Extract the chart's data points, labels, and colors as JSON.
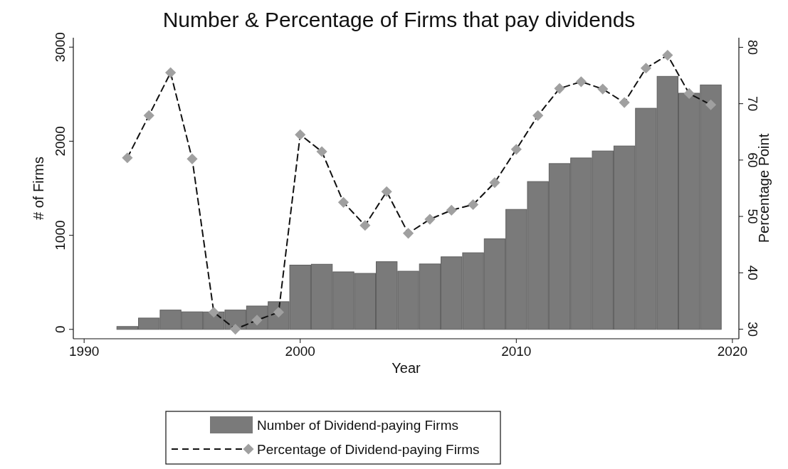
{
  "chart_data": {
    "type": "bar",
    "title": "Number & Percentage of Firms that pay dividends",
    "xlabel": "Year",
    "ylabel": "# of Firms",
    "y2label": "Percentage Point",
    "x": [
      1992,
      1993,
      1994,
      1995,
      1996,
      1997,
      1998,
      1999,
      2000,
      2001,
      2002,
      2003,
      2004,
      2005,
      2006,
      2007,
      2008,
      2009,
      2010,
      2011,
      2012,
      2013,
      2014,
      2015,
      2016,
      2017,
      2018,
      2019
    ],
    "series": [
      {
        "name": "Number of Dividend-paying Firms",
        "color": "#7a7a7a",
        "values": [
          30,
          120,
          205,
          186,
          185,
          205,
          248,
          294,
          683,
          692,
          611,
          595,
          719,
          618,
          695,
          771,
          814,
          962,
          1275,
          1571,
          1762,
          1822,
          1896,
          1949,
          2350,
          2689,
          2510,
          2598
        ]
      },
      {
        "name": "Percentage of Dividend-paying Firms",
        "type": "line",
        "axis": "y2",
        "color": "#a0a0a0",
        "marker": "diamond",
        "line_style": "dashed",
        "values": [
          60.4,
          67.9,
          75.5,
          60.2,
          33.0,
          30.0,
          31.6,
          33.0,
          64.5,
          61.5,
          52.5,
          48.4,
          54.4,
          47.0,
          49.5,
          51.1,
          52.1,
          56.0,
          61.9,
          67.9,
          72.7,
          73.9,
          72.6,
          70.2,
          76.3,
          78.6,
          71.8,
          69.8
        ]
      }
    ],
    "xlim": [
      1989.5,
      2020.3
    ],
    "xticks": [
      1990,
      2000,
      2010,
      2020
    ],
    "ylim": [
      -100,
      3100
    ],
    "yticks": [
      0,
      1000,
      2000,
      3000
    ],
    "y2lim": [
      28.3,
      81.7
    ],
    "y2ticks": [
      30,
      40,
      50,
      60,
      70,
      80
    ],
    "legend": "bottom"
  }
}
